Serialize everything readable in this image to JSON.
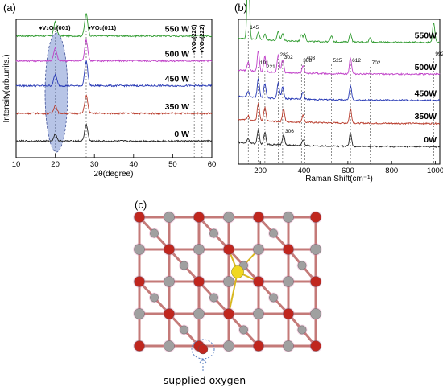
{
  "chart_data": [
    {
      "panel": "(a)",
      "type": "line",
      "xlabel": "2θ(degree)",
      "ylabel": "Intensity(arb.units.)",
      "xlim": [
        10,
        60
      ],
      "xticks": [
        "10",
        "20",
        "30",
        "40",
        "50",
        "60"
      ],
      "series": [
        {
          "name": "550 W",
          "color": "#2e9a2e",
          "level": 0.88,
          "peaks": [
            [
              20,
              0.1
            ],
            [
              27.9,
              0.16
            ]
          ]
        },
        {
          "name": "500 W",
          "color": "#c040c8",
          "level": 0.7,
          "peaks": [
            [
              20,
              0.09
            ],
            [
              27.9,
              0.15
            ]
          ]
        },
        {
          "name": "450 W",
          "color": "#2436b4",
          "level": 0.52,
          "peaks": [
            [
              20,
              0.08
            ],
            [
              27.9,
              0.18
            ]
          ]
        },
        {
          "name": "350 W",
          "color": "#b83a2a",
          "level": 0.32,
          "peaks": [
            [
              20,
              0.06
            ],
            [
              27.9,
              0.13
            ]
          ]
        },
        {
          "name": "0 W",
          "color": "#222222",
          "level": 0.12,
          "peaks": [
            [
              20,
              0.05
            ],
            [
              27.9,
              0.12
            ]
          ]
        }
      ],
      "peak_labels": [
        {
          "text": "♦V₂O₅(001)",
          "x": 20
        },
        {
          "text": "♦VO₂(011)",
          "x": 27.9
        },
        {
          "text": "♦VO₂(220)",
          "x": 55.5
        },
        {
          "text": "♦VO₂(222)",
          "x": 57.5
        }
      ]
    },
    {
      "panel": "(b)",
      "type": "line",
      "xlabel": "Raman Shift(cm⁻¹)",
      "ylabel": "",
      "xlim": [
        100,
        1020
      ],
      "xticks": [
        "200",
        "400",
        "600",
        "800",
        "1000"
      ],
      "series": [
        {
          "name": "550W",
          "color": "#2e9a2e",
          "level": 0.84,
          "peaks": [
            [
              145,
              0.58
            ],
            [
              191,
              0.05
            ],
            [
              221,
              0.04
            ],
            [
              282,
              0.06
            ],
            [
              302,
              0.05
            ],
            [
              388,
              0.05
            ],
            [
              403,
              0.05
            ],
            [
              525,
              0.04
            ],
            [
              612,
              0.06
            ],
            [
              702,
              0.03
            ],
            [
              992,
              0.14
            ]
          ]
        },
        {
          "name": "500W",
          "color": "#c040c8",
          "level": 0.62,
          "peaks": [
            [
              145,
              0.06
            ],
            [
              191,
              0.14
            ],
            [
              221,
              0.11
            ],
            [
              282,
              0.12
            ],
            [
              302,
              0.09
            ],
            [
              395,
              0.05
            ],
            [
              612,
              0.11
            ]
          ]
        },
        {
          "name": "450W",
          "color": "#2436b4",
          "level": 0.44,
          "peaks": [
            [
              145,
              0.04
            ],
            [
              191,
              0.13
            ],
            [
              221,
              0.1
            ],
            [
              282,
              0.11
            ],
            [
              302,
              0.08
            ],
            [
              395,
              0.05
            ],
            [
              612,
              0.1
            ]
          ]
        },
        {
          "name": "350W",
          "color": "#b83a2a",
          "level": 0.28,
          "peaks": [
            [
              145,
              0.03
            ],
            [
              191,
              0.12
            ],
            [
              221,
              0.09
            ],
            [
              306,
              0.09
            ],
            [
              395,
              0.05
            ],
            [
              612,
              0.1
            ]
          ]
        },
        {
          "name": "0W",
          "color": "#222222",
          "level": 0.12,
          "peaks": [
            [
              145,
              0.03
            ],
            [
              191,
              0.1
            ],
            [
              221,
              0.08
            ],
            [
              306,
              0.07
            ],
            [
              395,
              0.04
            ],
            [
              612,
              0.09
            ]
          ]
        }
      ],
      "peak_labels": [
        "145",
        "191",
        "221",
        "282",
        "302",
        "388",
        "403",
        "525",
        "612",
        "702",
        "992",
        "306"
      ]
    }
  ],
  "panel_c": {
    "label": "(c)",
    "caption": "supplied oxygen"
  },
  "colors": {
    "oxygen": "#c0261e",
    "vanadium": "#a0a0a0",
    "highlight": "#f0d820",
    "ellipse_fill": "#7b93d2"
  }
}
